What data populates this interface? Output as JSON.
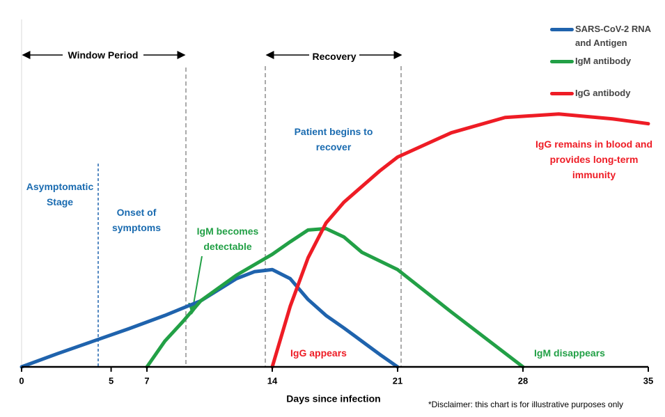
{
  "chart_data": {
    "type": "line",
    "xlabel": "Days since infection",
    "xlim": [
      0,
      35
    ],
    "xticks": [
      0,
      5,
      7,
      14,
      21,
      28,
      35
    ],
    "ylim": [
      0,
      5
    ],
    "legend": "upper right",
    "series": [
      {
        "name": "SARS-CoV-2 RNA and Antigen",
        "color": "#1f63ad",
        "x": [
          0,
          2,
          4,
          6,
          8,
          10,
          12,
          13,
          14,
          15,
          16,
          17,
          18,
          19,
          20,
          21
        ],
        "values": [
          0,
          0.19,
          0.37,
          0.55,
          0.74,
          0.95,
          1.27,
          1.37,
          1.4,
          1.27,
          0.97,
          0.74,
          0.56,
          0.37,
          0.18,
          0
        ]
      },
      {
        "name": "IgM antibody",
        "color": "#22a046",
        "x": [
          7,
          8,
          9,
          10,
          12,
          14,
          15,
          16,
          17,
          18,
          19,
          21,
          24,
          28
        ],
        "values": [
          0,
          0.37,
          0.65,
          0.95,
          1.32,
          1.62,
          1.8,
          1.97,
          1.99,
          1.87,
          1.65,
          1.4,
          0.79,
          0
        ]
      },
      {
        "name": "IgG antibody",
        "color": "#ee1c25",
        "x": [
          14,
          15,
          16,
          17,
          18,
          20,
          21,
          24,
          27,
          30,
          33,
          35
        ],
        "values": [
          0,
          0.87,
          1.57,
          2.07,
          2.37,
          2.82,
          3.02,
          3.37,
          3.59,
          3.64,
          3.57,
          3.5
        ]
      }
    ],
    "annotations": [
      {
        "text": "Window Period",
        "color": "#000000"
      },
      {
        "text": "Recovery",
        "color": "#000000"
      },
      {
        "text": "Patient begins to recover",
        "color": "#1a6bb0"
      },
      {
        "text": "Asymptomatic Stage",
        "color": "#1a6bb0"
      },
      {
        "text": "Onset of symptoms",
        "color": "#1a6bb0"
      },
      {
        "text": "IgM becomes detectable",
        "color": "#22a046"
      },
      {
        "text": "IgG remains in blood and provides long-term immunity",
        "color": "#ee1c25"
      },
      {
        "text": "IgG appears",
        "color": "#ee1c25"
      },
      {
        "text": "IgM disappears",
        "color": "#22a046"
      },
      {
        "text": "*Disclaimer: this chart is for illustrative purposes only",
        "color": "#000000"
      }
    ]
  }
}
